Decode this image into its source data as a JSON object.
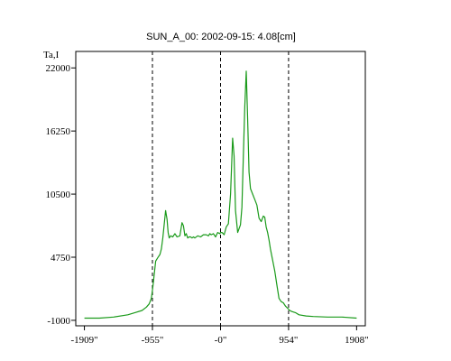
{
  "chart_data": {
    "type": "line",
    "title": "SUN_A_00: 2002-09-15: 4.08[cm]",
    "ylabel": "Ta,I",
    "xlabel": "",
    "xlim": [
      -2030,
      2030
    ],
    "ylim": [
      -1500,
      23500
    ],
    "grid": false,
    "legend": "none",
    "x_ticks": [
      {
        "value": -1909,
        "label": "-1909\""
      },
      {
        "value": -955,
        "label": "-955\""
      },
      {
        "value": 0,
        "label": "-0\""
      },
      {
        "value": 954,
        "label": "954\""
      },
      {
        "value": 1908,
        "label": "1908\""
      }
    ],
    "y_ticks": [
      {
        "value": -1000,
        "label": "-1000"
      },
      {
        "value": 4750,
        "label": "4750"
      },
      {
        "value": 10500,
        "label": "10500"
      },
      {
        "value": 16250,
        "label": "16250"
      },
      {
        "value": 22000,
        "label": "22000"
      }
    ],
    "vlines": [
      -955,
      0,
      954
    ],
    "series": [
      {
        "color": "#1a9a1a",
        "x": [
          -1909,
          -1700,
          -1500,
          -1300,
          -1200,
          -1100,
          -1040,
          -1000,
          -970,
          -950,
          -930,
          -910,
          -880,
          -850,
          -830,
          -810,
          -790,
          -770,
          -750,
          -735,
          -720,
          -700,
          -670,
          -640,
          -610,
          -570,
          -540,
          -520,
          -500,
          -480,
          -460,
          -440,
          -420,
          -400,
          -380,
          -360,
          -320,
          -280,
          -240,
          -200,
          -170,
          -150,
          -130,
          -100,
          -70,
          -40,
          -10,
          0,
          20,
          50,
          80,
          110,
          140,
          170,
          190,
          210,
          240,
          280,
          300,
          320,
          340,
          360,
          380,
          400,
          420,
          450,
          480,
          510,
          540,
          570,
          600,
          620,
          640,
          660,
          680,
          700,
          730,
          760,
          790,
          820,
          850,
          880,
          910,
          940,
          970,
          1000,
          1050,
          1100,
          1200,
          1300,
          1500,
          1700,
          1908
        ],
        "values": [
          -800,
          -800,
          -700,
          -500,
          -300,
          -100,
          200,
          500,
          1000,
          2000,
          3200,
          4400,
          4700,
          5000,
          5500,
          6500,
          7700,
          9000,
          8200,
          7000,
          6500,
          6700,
          6600,
          6900,
          6600,
          6700,
          7900,
          7600,
          6700,
          6900,
          6500,
          6600,
          6600,
          6500,
          6600,
          6500,
          6700,
          6600,
          6800,
          6800,
          6700,
          6900,
          6800,
          6900,
          6600,
          7000,
          6900,
          7000,
          7000,
          6800,
          7500,
          7800,
          10500,
          15600,
          14000,
          9000,
          7000,
          7700,
          9300,
          14000,
          18500,
          21700,
          17500,
          12500,
          11000,
          10500,
          10000,
          9500,
          8300,
          8000,
          8500,
          8400,
          7500,
          7000,
          6300,
          5500,
          4500,
          3500,
          2200,
          1000,
          700,
          600,
          300,
          100,
          -100,
          -200,
          -300,
          -500,
          -600,
          -650,
          -700,
          -700,
          -800
        ]
      }
    ]
  }
}
